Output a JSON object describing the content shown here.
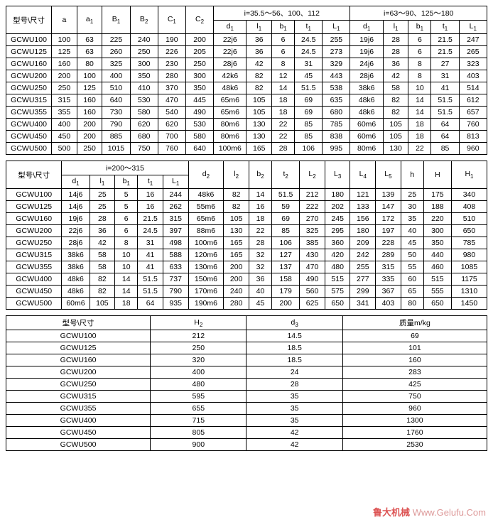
{
  "headers": {
    "model": "型号\\尺寸",
    "a": "a",
    "a1": "a",
    "B1": "B",
    "B2": "B",
    "C1": "C",
    "C2": "C",
    "group1": "i=35.5～56、100、112",
    "group2": "i=63～90、125～180",
    "group3": "i=200～315",
    "d1": "d",
    "l1": "l",
    "b1": "b",
    "t1": "t",
    "L1": "L",
    "d2": "d",
    "l2": "l",
    "b2": "b",
    "t2": "t",
    "L2": "L",
    "L3": "L",
    "L4": "L",
    "L5": "L",
    "h": "h",
    "H": "H",
    "H1": "H",
    "H2": "H",
    "d3": "d",
    "mass": "质量m/kg"
  },
  "t1": {
    "cols": [
      "model",
      "a",
      "a1",
      "B1",
      "B2",
      "C1",
      "C2",
      "d1a",
      "l1a",
      "b1a",
      "t1a",
      "L1a",
      "d1b",
      "l1b",
      "b1b",
      "t1b",
      "L1b"
    ],
    "rows": [
      [
        "GCWU100",
        "100",
        "63",
        "225",
        "240",
        "190",
        "200",
        "22j6",
        "36",
        "6",
        "24.5",
        "255",
        "19j6",
        "28",
        "6",
        "21.5",
        "247"
      ],
      [
        "GCWU125",
        "125",
        "63",
        "260",
        "250",
        "226",
        "205",
        "22j6",
        "36",
        "6",
        "24.5",
        "273",
        "19j6",
        "28",
        "6",
        "21.5",
        "265"
      ],
      [
        "GCWU160",
        "160",
        "80",
        "325",
        "300",
        "230",
        "250",
        "28j6",
        "42",
        "8",
        "31",
        "329",
        "24j6",
        "36",
        "8",
        "27",
        "323"
      ],
      [
        "GCWU200",
        "200",
        "100",
        "400",
        "350",
        "280",
        "300",
        "42k6",
        "82",
        "12",
        "45",
        "443",
        "28j6",
        "42",
        "8",
        "31",
        "403"
      ],
      [
        "GCWU250",
        "250",
        "125",
        "510",
        "410",
        "370",
        "350",
        "48k6",
        "82",
        "14",
        "51.5",
        "538",
        "38k6",
        "58",
        "10",
        "41",
        "514"
      ],
      [
        "GCWU315",
        "315",
        "160",
        "640",
        "530",
        "470",
        "445",
        "65m6",
        "105",
        "18",
        "69",
        "635",
        "48k6",
        "82",
        "14",
        "51.5",
        "612"
      ],
      [
        "GCWU355",
        "355",
        "160",
        "730",
        "580",
        "540",
        "490",
        "65m6",
        "105",
        "18",
        "69",
        "680",
        "48k6",
        "82",
        "14",
        "51.5",
        "657"
      ],
      [
        "GCWU400",
        "400",
        "200",
        "790",
        "620",
        "620",
        "530",
        "80m6",
        "130",
        "22",
        "85",
        "785",
        "60m6",
        "105",
        "18",
        "64",
        "760"
      ],
      [
        "GCWU450",
        "450",
        "200",
        "885",
        "680",
        "700",
        "580",
        "80m6",
        "130",
        "22",
        "85",
        "838",
        "60m6",
        "105",
        "18",
        "64",
        "813"
      ],
      [
        "GCWU500",
        "500",
        "250",
        "1015",
        "750",
        "760",
        "640",
        "100m6",
        "165",
        "28",
        "106",
        "995",
        "80m6",
        "130",
        "22",
        "85",
        "960"
      ]
    ]
  },
  "t2": {
    "rows": [
      [
        "GCWU100",
        "14j6",
        "25",
        "5",
        "16",
        "244",
        "48k6",
        "82",
        "14",
        "51.5",
        "212",
        "180",
        "121",
        "139",
        "25",
        "175",
        "340"
      ],
      [
        "GCWU125",
        "14j6",
        "25",
        "5",
        "16",
        "262",
        "55m6",
        "82",
        "16",
        "59",
        "222",
        "202",
        "133",
        "147",
        "30",
        "188",
        "408"
      ],
      [
        "GCWU160",
        "19j6",
        "28",
        "6",
        "21.5",
        "315",
        "65m6",
        "105",
        "18",
        "69",
        "270",
        "245",
        "156",
        "172",
        "35",
        "220",
        "510"
      ],
      [
        "GCWU200",
        "22j6",
        "36",
        "6",
        "24.5",
        "397",
        "88m6",
        "130",
        "22",
        "85",
        "325",
        "295",
        "180",
        "197",
        "40",
        "300",
        "650"
      ],
      [
        "GCWU250",
        "28j6",
        "42",
        "8",
        "31",
        "498",
        "100m6",
        "165",
        "28",
        "106",
        "385",
        "360",
        "209",
        "228",
        "45",
        "350",
        "785"
      ],
      [
        "GCWU315",
        "38k6",
        "58",
        "10",
        "41",
        "588",
        "120m6",
        "165",
        "32",
        "127",
        "430",
        "420",
        "242",
        "289",
        "50",
        "440",
        "980"
      ],
      [
        "GCWU355",
        "38k6",
        "58",
        "10",
        "41",
        "633",
        "130m6",
        "200",
        "32",
        "137",
        "470",
        "480",
        "255",
        "315",
        "55",
        "460",
        "1085"
      ],
      [
        "GCWU400",
        "48k6",
        "82",
        "14",
        "51.5",
        "737",
        "150m6",
        "200",
        "36",
        "158",
        "490",
        "515",
        "277",
        "335",
        "60",
        "515",
        "1175"
      ],
      [
        "GCWU450",
        "48k6",
        "82",
        "14",
        "51.5",
        "790",
        "170m6",
        "240",
        "40",
        "179",
        "560",
        "575",
        "299",
        "367",
        "65",
        "555",
        "1310"
      ],
      [
        "GCWU500",
        "60m6",
        "105",
        "18",
        "64",
        "935",
        "190m6",
        "280",
        "45",
        "200",
        "625",
        "650",
        "341",
        "403",
        "80",
        "650",
        "1450"
      ]
    ]
  },
  "t3": {
    "rows": [
      [
        "GCWU100",
        "212",
        "14.5",
        "69"
      ],
      [
        "GCWU125",
        "250",
        "18.5",
        "101"
      ],
      [
        "GCWU160",
        "320",
        "18.5",
        "160"
      ],
      [
        "GCWU200",
        "400",
        "24",
        "283"
      ],
      [
        "GCWU250",
        "480",
        "28",
        "425"
      ],
      [
        "GCWU315",
        "595",
        "35",
        "750"
      ],
      [
        "GCWU355",
        "655",
        "35",
        "960"
      ],
      [
        "GCWU400",
        "715",
        "35",
        "1300"
      ],
      [
        "GCWU450",
        "805",
        "42",
        "1760"
      ],
      [
        "GCWU500",
        "900",
        "42",
        "2530"
      ]
    ]
  },
  "watermark": {
    "cn": "鲁大机械",
    "en": "Www.Gelufu.Com"
  }
}
